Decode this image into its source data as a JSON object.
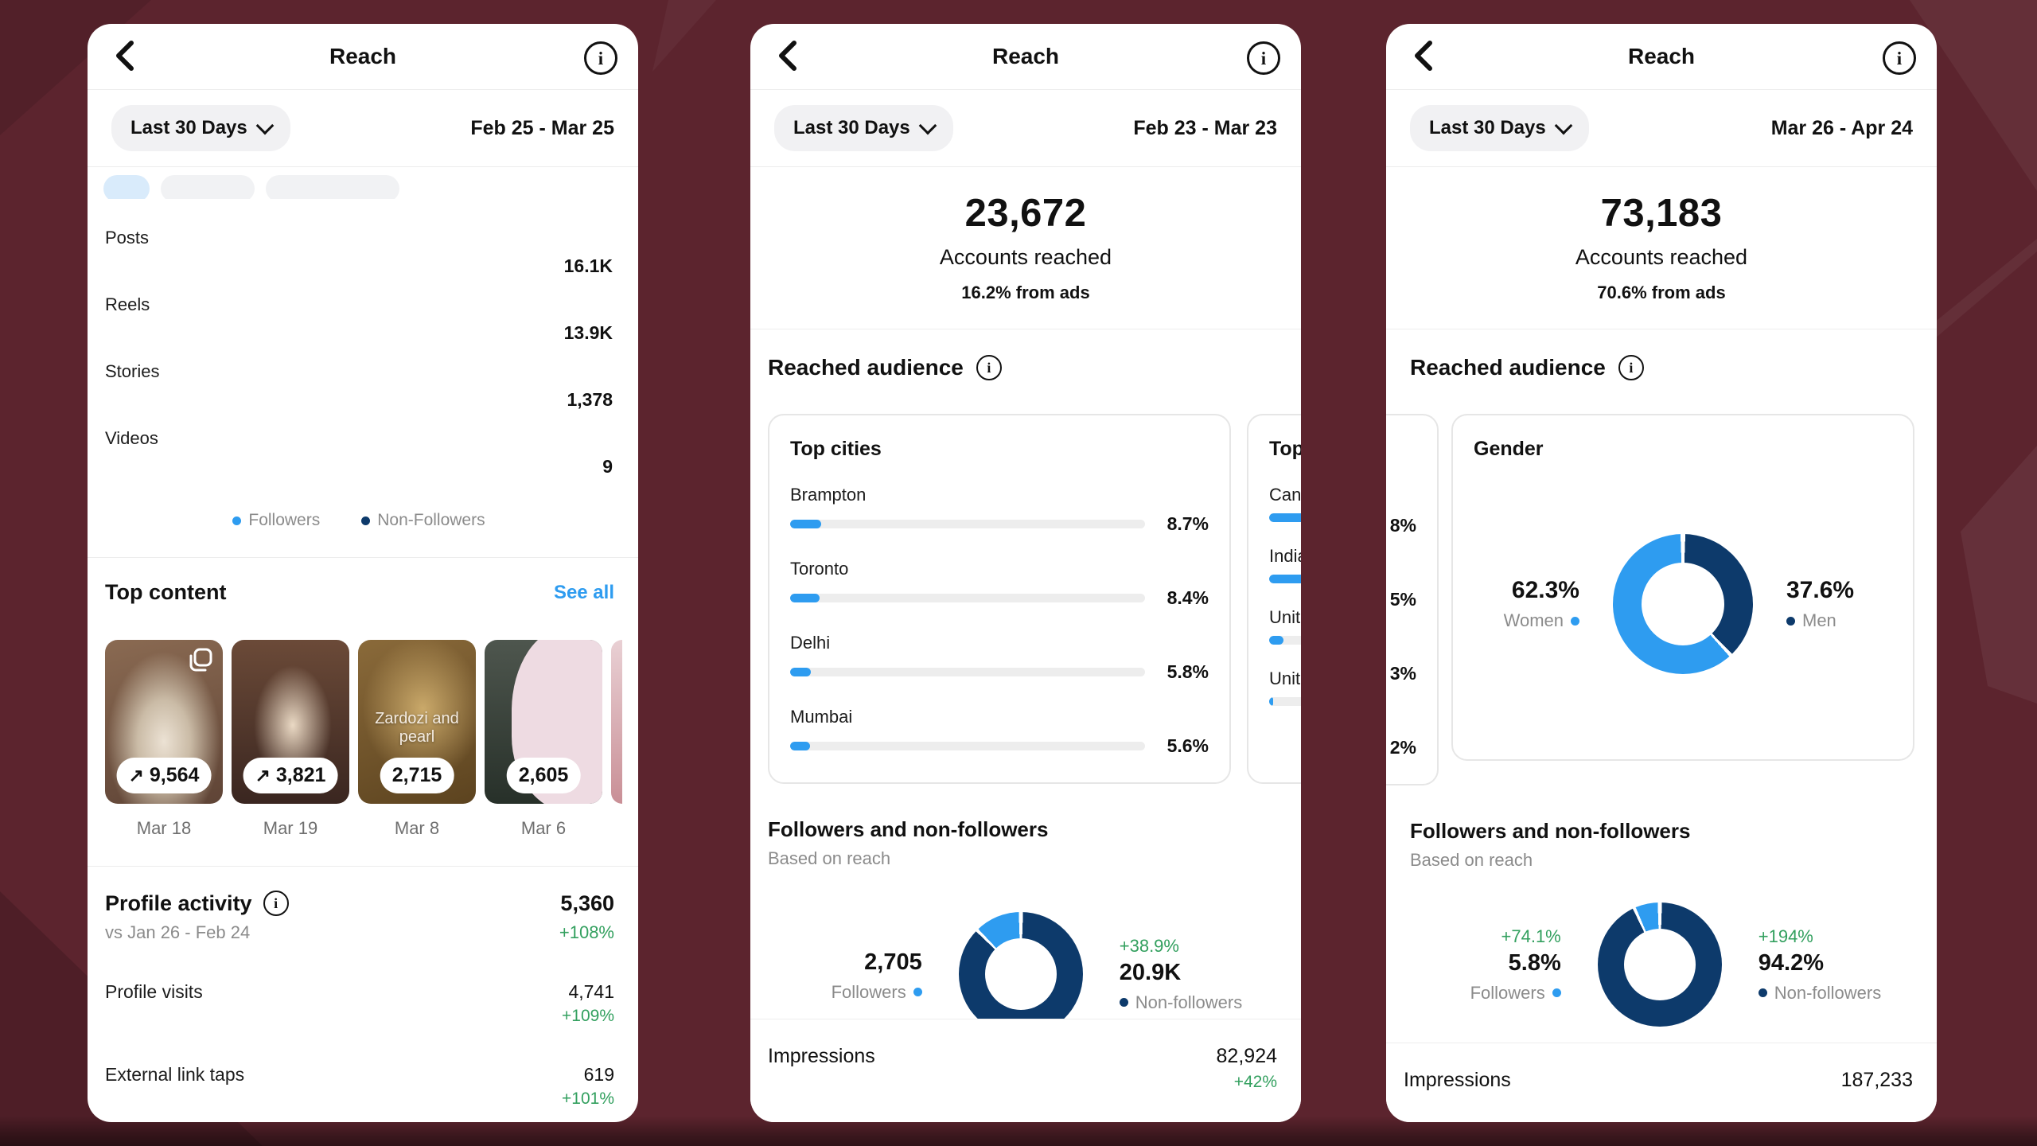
{
  "theme": {
    "background": "#5c242e",
    "blue": "#2e9cf0",
    "navy": "#0d3a6b",
    "green": "#33a05f",
    "gray_text": "#8b8b8b",
    "link_blue": "#2e9cf0",
    "divider": "#ededed"
  },
  "icons": {
    "back": "‹",
    "info": "i",
    "trend_up": "↗",
    "dot": "•",
    "chevron_down": "⌄"
  },
  "panel1": {
    "title": "Reach",
    "period": "Last 30 Days",
    "date_range": "Feb 25 - Mar 25",
    "bars": {
      "rows": [
        {
          "label": "Posts",
          "value": "16.1K",
          "followers_w": 5.4,
          "non_followers_w": 26.2
        },
        {
          "label": "Reels",
          "value": "13.9K",
          "followers_w": 3.3,
          "non_followers_w": 23.9
        },
        {
          "label": "Stories",
          "value": "1,378",
          "followers_w": 2.8,
          "non_followers_w": 0.9
        },
        {
          "label": "Videos",
          "value": "9",
          "followers_w": 0,
          "non_followers_w": 0
        }
      ],
      "legend": [
        {
          "label": "Followers"
        },
        {
          "label": "Non-Followers"
        }
      ]
    },
    "top_content": {
      "heading": "Top content",
      "action": "See all",
      "items": [
        {
          "metric": "9,564",
          "trend": "↗",
          "date": "Mar 18"
        },
        {
          "metric": "3,821",
          "trend": "↗",
          "date": "Mar 19"
        },
        {
          "metric": "2,715",
          "date": "Mar 8",
          "overlay": "Zardozi and pearl"
        },
        {
          "metric": "2,605",
          "date": "Mar 6"
        }
      ]
    },
    "profile_activity": {
      "heading": "Profile activity",
      "total": "5,360",
      "total_change": "+108%",
      "compare": "vs Jan 26 - Feb 24",
      "rows": [
        {
          "label": "Profile visits",
          "value": "4,741",
          "change": "+109%"
        },
        {
          "label": "External link taps",
          "value": "619",
          "change": "+101%"
        }
      ]
    }
  },
  "panel2": {
    "title": "Reach",
    "period": "Last 30 Days",
    "date_range": "Feb 23 - Mar 23",
    "summary": {
      "value": "23,672",
      "label": "Accounts reached",
      "ads": "16.2% from ads"
    },
    "reached_audience_heading": "Reached audience",
    "top_cities": {
      "heading": "Top cities",
      "rows": [
        {
          "label": "Brampton",
          "pct": "8.7%",
          "bar": 8.7
        },
        {
          "label": "Toronto",
          "pct": "8.4%",
          "bar": 8.4
        },
        {
          "label": "Delhi",
          "pct": "5.8%",
          "bar": 5.8
        },
        {
          "label": "Mumbai",
          "pct": "5.6%",
          "bar": 5.6
        }
      ]
    },
    "top_countries_partial": {
      "heading": "Top",
      "rows": [
        {
          "label": "Can",
          "bar": 45
        },
        {
          "label": "India",
          "bar": 40
        },
        {
          "label": "Unit",
          "bar": 4
        },
        {
          "label": "Unit",
          "bar": 1.2
        }
      ]
    },
    "fnf": {
      "heading": "Followers and non-followers",
      "sub": "Based on reach",
      "left_value": "2,705",
      "left_label": "Followers",
      "right_change": "+38.9%",
      "right_value": "20.9K",
      "right_label": "Non-followers",
      "donut": {
        "mode": "fnf",
        "blue_pct": 11.5
      }
    },
    "impressions": {
      "label": "Impressions",
      "value": "82,924",
      "change": "+42%"
    }
  },
  "panel3": {
    "title": "Reach",
    "period": "Last 30 Days",
    "date_range": "Mar 26 - Apr 24",
    "summary": {
      "value": "73,183",
      "label": "Accounts reached",
      "ads": "70.6% from ads"
    },
    "reached_audience_heading": "Reached audience",
    "partial_values": [
      "8%",
      "5%",
      "3%",
      "2%"
    ],
    "gender": {
      "heading": "Gender",
      "left_value": "62.3%",
      "left_label": "Women",
      "right_value": "37.6%",
      "right_label": "Men",
      "donut": {
        "mode": "gender",
        "navy_pct": 37.6
      }
    },
    "fnf": {
      "heading": "Followers and non-followers",
      "sub": "Based on reach",
      "left_change": "+74.1%",
      "left_value": "5.8%",
      "left_label": "Followers",
      "right_change": "+194%",
      "right_value": "94.2%",
      "right_label": "Non-followers",
      "donut": {
        "mode": "fnf",
        "blue_pct": 5.8
      }
    },
    "impressions": {
      "label": "Impressions",
      "value": "187,233"
    }
  }
}
